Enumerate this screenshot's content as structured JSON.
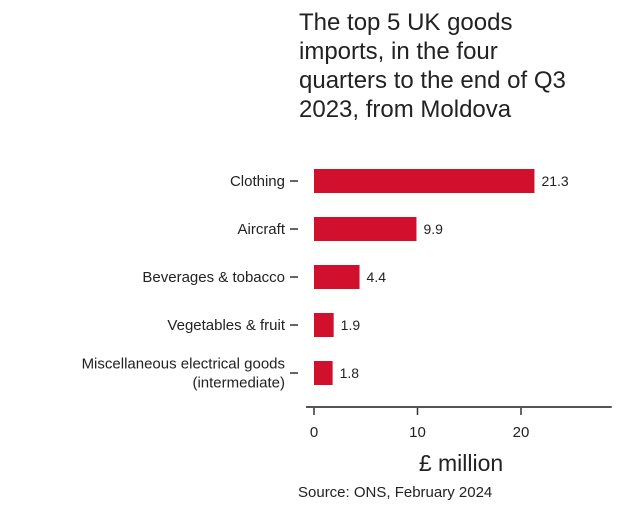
{
  "chart_data": {
    "type": "bar",
    "orientation": "horizontal",
    "title_lines": [
      "The top 5 UK goods",
      "imports, in the four",
      "quarters to the end of Q3",
      "2023, from Moldova"
    ],
    "categories": [
      [
        "Clothing"
      ],
      [
        "Aircraft"
      ],
      [
        "Beverages & tobacco"
      ],
      [
        "Vegetables & fruit"
      ],
      [
        "Miscellaneous electrical goods",
        "(intermediate)"
      ]
    ],
    "values": [
      21.3,
      9.9,
      4.4,
      1.9,
      1.8
    ],
    "data_labels": [
      "21.3",
      "9.9",
      "4.4",
      "1.9",
      "1.8"
    ],
    "xlabel": "£ million",
    "ylabel": "",
    "xlim": [
      0,
      28
    ],
    "x_ticks": [
      0,
      10,
      20
    ],
    "grid": false,
    "bar_color": "#d0102d",
    "source": "Source: ONS, February 2024"
  }
}
